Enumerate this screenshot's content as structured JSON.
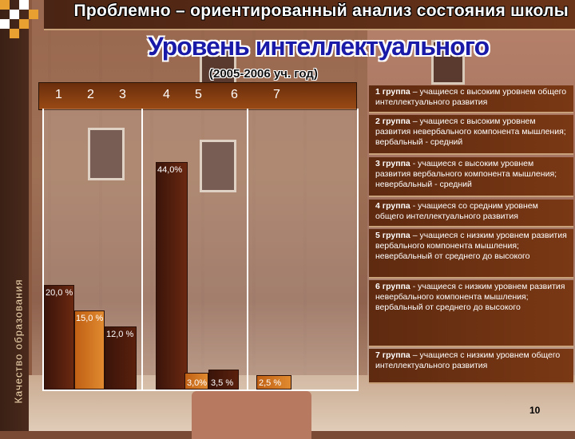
{
  "header": {
    "top_title": "Проблемно – ориентированный анализ состояния школы",
    "main_title": "Уровень интеллектуального",
    "subtitle": "(2005-2006 уч. год)"
  },
  "sidebar": {
    "vertical_label": "Качество образования"
  },
  "page_number": "10",
  "colors": {
    "bar_dark": "#3a140a",
    "bar_mid": "#6e2a10",
    "bar_orange": "#c86414",
    "header": "#7a3814"
  },
  "chart_data": {
    "type": "bar",
    "categories": [
      "1",
      "2",
      "3",
      "4",
      "5",
      "6",
      "7"
    ],
    "values": [
      20.0,
      15.0,
      12.0,
      44.0,
      3.0,
      3.5,
      2.5
    ],
    "data_labels": [
      "20,0 %",
      "15,0 %",
      "12,0 %",
      "44,0%",
      "3,0%",
      "3,5 %",
      "2,5 %"
    ],
    "ylim": [
      0,
      50
    ],
    "title": "",
    "xlabel": "",
    "ylabel": ""
  },
  "legend": [
    {
      "group": "1 группа",
      "text": " – учащиеся с высоким уровнем общего интеллектуального развития"
    },
    {
      "group": "2 группа",
      "text": " – учащиеся с высоким уровнем развития невербального компонента мышления; вербальный - средний"
    },
    {
      "group": "3 группа",
      "text": " - учащиеся с высоким уровнем развития вербального компонента мышления; невербальный - средний"
    },
    {
      "group": "4 группа",
      "text": " - учащиеся со средним уровнем общего интеллектуального развития"
    },
    {
      "group": "5 группа",
      "text": " – учащиеся с низким уровнем развития вербального компонента мышления; невербальный от среднего до высокого"
    },
    {
      "group": "6 группа",
      "text": " - учащиеся с низким уровнем развития невербального компонента мышления; вербальный от среднего до высокого"
    },
    {
      "group": "7 группа",
      "text": " – учащиеся с низким уровнем общего интеллектуального развития"
    }
  ]
}
